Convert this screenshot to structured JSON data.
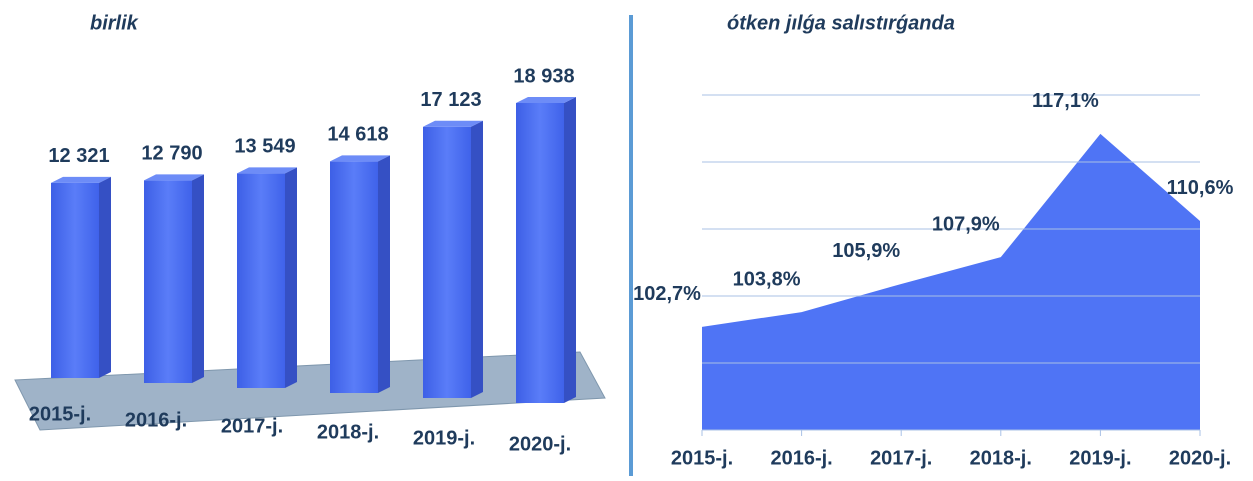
{
  "chart_data": [
    {
      "type": "bar3d",
      "title": "birlik",
      "categories": [
        "2015-j.",
        "2016-j.",
        "2017-j.",
        "2018-j.",
        "2019-j.",
        "2020-j."
      ],
      "values": [
        12321,
        12790,
        13549,
        14618,
        17123,
        18938
      ],
      "value_labels": [
        "12 321",
        "12 790",
        "13 549",
        "14 618",
        "17 123",
        "18 938"
      ],
      "color": "#4f74f5"
    },
    {
      "type": "area",
      "title": "ótken jılǵa salıstırǵanda",
      "categories": [
        "2015-j.",
        "2016-j.",
        "2017-j.",
        "2018-j.",
        "2019-j.",
        "2020-j."
      ],
      "values": [
        102.7,
        103.8,
        105.9,
        107.9,
        117.1,
        110.6
      ],
      "value_labels": [
        "102,7%",
        "103,8%",
        "105,9%",
        "107,9%",
        "117,1%",
        "110,6%"
      ],
      "color": "#4f74f5",
      "ylim": [
        95,
        120
      ],
      "yticks": [
        95,
        100,
        105,
        110,
        115,
        120
      ],
      "grid": true
    }
  ]
}
